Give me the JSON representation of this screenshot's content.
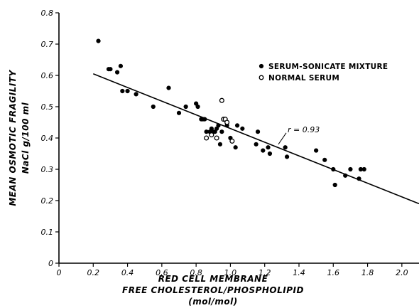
{
  "chart_data": {
    "type": "scatter",
    "title": "",
    "xlabel_lines": [
      "RED CELL MEMBRANE",
      "FREE CHOLESTEROL/PHOSPHOLIPID",
      "(mol/mol)"
    ],
    "ylabel_lines": [
      "MEAN OSMOTIC FRAGILITY",
      "NaCl g/100 ml"
    ],
    "xlim": [
      0,
      2.1
    ],
    "ylim": [
      0,
      0.8
    ],
    "x_ticks": [
      {
        "value": 0,
        "label": "0"
      },
      {
        "value": 0.2,
        "label": "0.2"
      },
      {
        "value": 0.4,
        "label": "0.4"
      },
      {
        "value": 0.6,
        "label": "0.6"
      },
      {
        "value": 0.8,
        "label": "0.8"
      },
      {
        "value": 1.0,
        "label": "1.0"
      },
      {
        "value": 1.2,
        "label": "1.2"
      },
      {
        "value": 1.4,
        "label": "1.4"
      },
      {
        "value": 1.6,
        "label": "1.6"
      },
      {
        "value": 1.8,
        "label": "1.8"
      },
      {
        "value": 2.0,
        "label": "2.0"
      }
    ],
    "y_ticks": [
      {
        "value": 0,
        "label": "0"
      },
      {
        "value": 0.1,
        "label": "0.1"
      },
      {
        "value": 0.2,
        "label": "0.2"
      },
      {
        "value": 0.3,
        "label": "0.3"
      },
      {
        "value": 0.4,
        "label": "0.4"
      },
      {
        "value": 0.5,
        "label": "0.5"
      },
      {
        "value": 0.6,
        "label": "0.6"
      },
      {
        "value": 0.7,
        "label": "0.7"
      },
      {
        "value": 0.8,
        "label": "0.8"
      }
    ],
    "grid": false,
    "legend_position": "top-right",
    "series": [
      {
        "name": "SERUM-SONICATE MIXTURE",
        "marker": "filled-circle",
        "color": "#000000",
        "points": [
          [
            0.23,
            0.71
          ],
          [
            0.29,
            0.62
          ],
          [
            0.3,
            0.62
          ],
          [
            0.34,
            0.61
          ],
          [
            0.36,
            0.63
          ],
          [
            0.37,
            0.55
          ],
          [
            0.4,
            0.55
          ],
          [
            0.45,
            0.54
          ],
          [
            0.55,
            0.5
          ],
          [
            0.64,
            0.56
          ],
          [
            0.7,
            0.48
          ],
          [
            0.74,
            0.5
          ],
          [
            0.8,
            0.51
          ],
          [
            0.81,
            0.5
          ],
          [
            0.83,
            0.46
          ],
          [
            0.84,
            0.46
          ],
          [
            0.85,
            0.46
          ],
          [
            0.86,
            0.42
          ],
          [
            0.88,
            0.42
          ],
          [
            0.89,
            0.43
          ],
          [
            0.9,
            0.42
          ],
          [
            0.91,
            0.42
          ],
          [
            0.92,
            0.43
          ],
          [
            0.93,
            0.44
          ],
          [
            0.94,
            0.38
          ],
          [
            0.95,
            0.42
          ],
          [
            0.98,
            0.44
          ],
          [
            1.0,
            0.4
          ],
          [
            1.03,
            0.37
          ],
          [
            1.04,
            0.44
          ],
          [
            1.07,
            0.43
          ],
          [
            1.15,
            0.38
          ],
          [
            1.16,
            0.42
          ],
          [
            1.19,
            0.36
          ],
          [
            1.22,
            0.37
          ],
          [
            1.23,
            0.35
          ],
          [
            1.32,
            0.37
          ],
          [
            1.33,
            0.34
          ],
          [
            1.5,
            0.36
          ],
          [
            1.55,
            0.33
          ],
          [
            1.6,
            0.3
          ],
          [
            1.61,
            0.25
          ],
          [
            1.67,
            0.28
          ],
          [
            1.7,
            0.3
          ],
          [
            1.75,
            0.27
          ],
          [
            1.76,
            0.3
          ],
          [
            1.78,
            0.3
          ]
        ]
      },
      {
        "name": "NORMAL SERUM",
        "marker": "open-circle",
        "color": "#000000",
        "points": [
          [
            0.86,
            0.4
          ],
          [
            0.89,
            0.41
          ],
          [
            0.92,
            0.4
          ],
          [
            0.95,
            0.52
          ],
          [
            0.96,
            0.46
          ],
          [
            0.97,
            0.46
          ],
          [
            0.98,
            0.45
          ],
          [
            1.01,
            0.39
          ]
        ]
      }
    ],
    "regression_line": {
      "x1": 0.2,
      "y1": 0.605,
      "x2": 2.1,
      "y2": 0.19
    },
    "annotation": {
      "text": "r = 0.93",
      "x": 1.28,
      "y": 0.38
    }
  }
}
